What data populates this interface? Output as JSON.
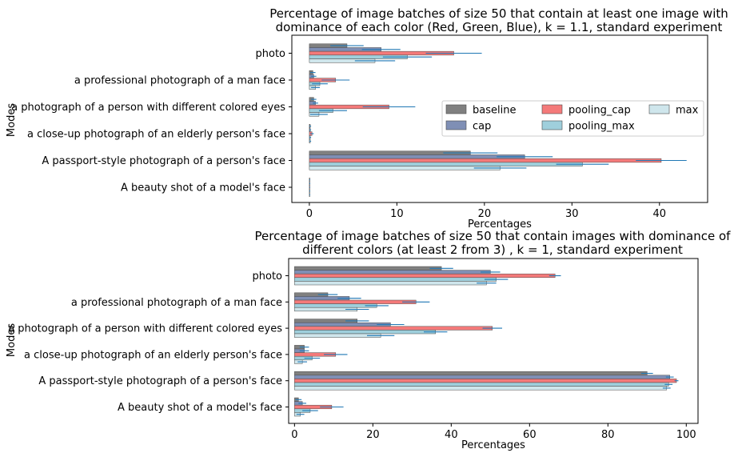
{
  "chart_data": [
    {
      "type": "bar",
      "orientation": "horizontal",
      "title": "Percentage of image batches of size 50 that contain at least one image with\ndominance of each color (Red, Green, Blue), k = 1.1, standard experiment",
      "xlabel": "Percentages",
      "ylabel": "Modes",
      "xlim": [
        -2,
        45.5
      ],
      "xticks": [
        "0",
        "10",
        "20",
        "30",
        "40"
      ],
      "legend_position": "right",
      "categories": [
        "photo",
        "a professional photograph of a man face",
        "a photograph of a person with different colored eyes",
        "a close-up photograph of an elderly person's face",
        "A passport-style photograph of a person's face",
        "A beauty shot of a model's face"
      ],
      "series": [
        {
          "name": "baseline",
          "color": "#808080",
          "values": [
            4.3,
            0.4,
            0.5,
            0.1,
            18.4,
            0.05
          ],
          "errors": [
            1.9,
            0.3,
            0.3,
            0.1,
            3.1,
            0.05
          ]
        },
        {
          "name": "cap",
          "color": "#7f8fb5",
          "values": [
            8.2,
            0.5,
            0.7,
            0.1,
            24.6,
            0.05
          ],
          "errors": [
            2.2,
            0.3,
            0.3,
            0.1,
            3.2,
            0.05
          ]
        },
        {
          "name": "pooling_cap",
          "color": "#f47a7a",
          "values": [
            16.5,
            3.0,
            9.1,
            0.3,
            40.2,
            0.05
          ],
          "errors": [
            3.2,
            1.6,
            3.0,
            0.2,
            2.9,
            0.05
          ]
        },
        {
          "name": "pooling_max",
          "color": "#9fcfdc",
          "values": [
            11.2,
            1.2,
            2.7,
            0.1,
            31.2,
            0.05
          ],
          "errors": [
            2.8,
            0.9,
            1.6,
            0.1,
            3.0,
            0.05
          ]
        },
        {
          "name": "max",
          "color": "#cfe6ec",
          "values": [
            7.5,
            0.7,
            1.1,
            0.1,
            21.8,
            0.05
          ],
          "errors": [
            2.3,
            0.5,
            1.0,
            0.1,
            3.0,
            0.05
          ]
        }
      ]
    },
    {
      "type": "bar",
      "orientation": "horizontal",
      "title": "Percentage of image batches of size 50 that contain images with dominance of\ndifferent colors (at least 2 from 3) , k = 1, standard experiment",
      "xlabel": "Percentages",
      "ylabel": "Modes",
      "xlim": [
        -1.5,
        103
      ],
      "xticks": [
        "0",
        "20",
        "40",
        "60",
        "80",
        "100"
      ],
      "categories": [
        "photo",
        "a professional photograph of a man face",
        "a photograph of a person with different colored eyes",
        "a close-up photograph of an elderly person's face",
        "A passport-style photograph of a person's face",
        "A beauty shot of a model's face"
      ],
      "series": [
        {
          "name": "baseline",
          "color": "#808080",
          "values": [
            37.5,
            8.5,
            16.0,
            2.5,
            90.0,
            1.0
          ],
          "errors": [
            3.0,
            2.5,
            3.0,
            1.2,
            1.5,
            0.8
          ]
        },
        {
          "name": "cap",
          "color": "#7f8fb5",
          "values": [
            50.0,
            14.0,
            24.5,
            2.5,
            95.8,
            2.0
          ],
          "errors": [
            2.5,
            3.0,
            3.5,
            1.2,
            1.0,
            1.0
          ]
        },
        {
          "name": "pooling_cap",
          "color": "#f47a7a",
          "values": [
            66.5,
            31.0,
            50.5,
            10.5,
            97.5,
            9.5
          ],
          "errors": [
            1.5,
            3.5,
            2.5,
            3.0,
            0.5,
            3.0
          ]
        },
        {
          "name": "pooling_max",
          "color": "#9fcfdc",
          "values": [
            51.5,
            21.0,
            36.0,
            4.5,
            95.5,
            4.0
          ],
          "errors": [
            3.0,
            3.0,
            3.0,
            2.0,
            1.0,
            2.0
          ]
        },
        {
          "name": "max",
          "color": "#cfe6ec",
          "values": [
            49.0,
            16.0,
            22.0,
            2.0,
            95.0,
            1.5
          ],
          "errors": [
            2.5,
            3.0,
            3.5,
            1.2,
            1.0,
            1.0
          ]
        }
      ]
    }
  ]
}
